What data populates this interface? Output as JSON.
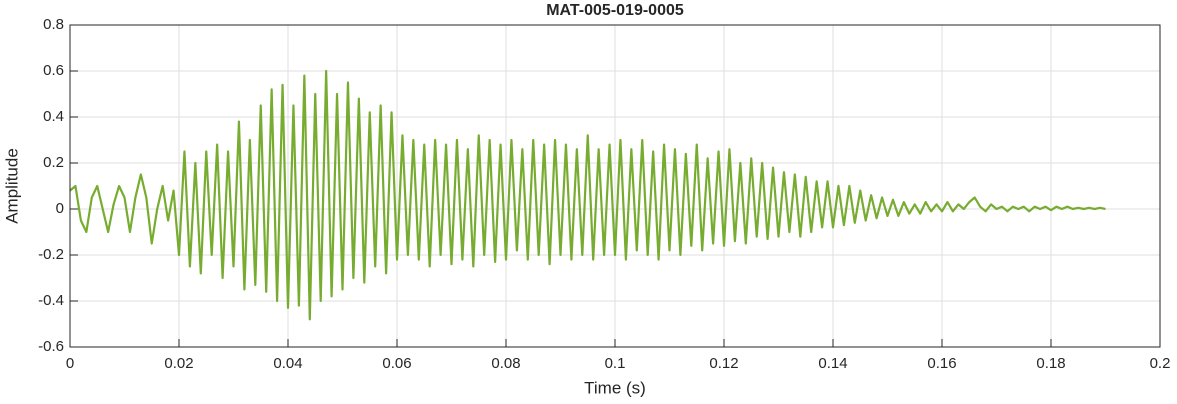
{
  "chart_data": {
    "type": "line",
    "title": "MAT-005-019-0005",
    "x_label": "Time (s)",
    "y_label": "Amplitude",
    "xlim": [
      0,
      0.2
    ],
    "xticks": [
      0,
      0.02,
      0.04,
      0.06,
      0.08,
      0.1,
      0.12,
      0.14,
      0.16,
      0.18,
      0.2
    ],
    "ylim": [
      -0.6,
      0.8
    ],
    "yticks": [
      -0.6,
      -0.4,
      -0.2,
      0,
      0.2,
      0.4,
      0.6,
      0.8
    ],
    "grid": true,
    "series": [
      {
        "color": "#77ac30",
        "x": [
          0,
          0.001,
          0.002,
          0.003,
          0.004,
          0.005,
          0.006,
          0.007,
          0.008,
          0.009,
          0.01,
          0.011,
          0.012,
          0.013,
          0.014,
          0.015,
          0.016,
          0.017,
          0.018,
          0.019,
          0.02,
          0.021,
          0.022,
          0.023,
          0.024,
          0.025,
          0.026,
          0.027,
          0.028,
          0.029,
          0.03,
          0.031,
          0.032,
          0.033,
          0.034,
          0.035,
          0.036,
          0.037,
          0.038,
          0.039,
          0.04,
          0.041,
          0.042,
          0.043,
          0.044,
          0.045,
          0.046,
          0.047,
          0.048,
          0.049,
          0.05,
          0.051,
          0.052,
          0.053,
          0.054,
          0.055,
          0.056,
          0.057,
          0.058,
          0.059,
          0.06,
          0.061,
          0.062,
          0.063,
          0.064,
          0.065,
          0.066,
          0.067,
          0.068,
          0.069,
          0.07,
          0.071,
          0.072,
          0.073,
          0.074,
          0.075,
          0.076,
          0.077,
          0.078,
          0.079,
          0.08,
          0.081,
          0.082,
          0.083,
          0.084,
          0.085,
          0.086,
          0.087,
          0.088,
          0.089,
          0.09,
          0.091,
          0.092,
          0.093,
          0.094,
          0.095,
          0.096,
          0.097,
          0.098,
          0.099,
          0.1,
          0.101,
          0.102,
          0.103,
          0.104,
          0.105,
          0.106,
          0.107,
          0.108,
          0.109,
          0.11,
          0.111,
          0.112,
          0.113,
          0.114,
          0.115,
          0.116,
          0.117,
          0.118,
          0.119,
          0.12,
          0.121,
          0.122,
          0.123,
          0.124,
          0.125,
          0.126,
          0.127,
          0.128,
          0.129,
          0.13,
          0.131,
          0.132,
          0.133,
          0.134,
          0.135,
          0.136,
          0.137,
          0.138,
          0.139,
          0.14,
          0.141,
          0.142,
          0.143,
          0.144,
          0.145,
          0.146,
          0.147,
          0.148,
          0.149,
          0.15,
          0.151,
          0.152,
          0.153,
          0.154,
          0.155,
          0.156,
          0.157,
          0.158,
          0.159,
          0.16,
          0.161,
          0.162,
          0.163,
          0.164,
          0.165,
          0.166,
          0.167,
          0.168,
          0.169,
          0.17,
          0.171,
          0.172,
          0.173,
          0.174,
          0.175,
          0.176,
          0.177,
          0.178,
          0.179,
          0.18,
          0.181,
          0.182,
          0.183,
          0.184,
          0.185,
          0.186,
          0.187,
          0.188,
          0.189,
          0.19
        ],
        "values": [
          0.08,
          0.1,
          -0.05,
          -0.1,
          0.05,
          0.1,
          0,
          -0.1,
          0.02,
          0.1,
          0.05,
          -0.1,
          0.05,
          0.15,
          0.05,
          -0.15,
          0,
          0.1,
          -0.05,
          0.08,
          -0.2,
          0.25,
          -0.25,
          0.2,
          -0.28,
          0.25,
          -0.2,
          0.28,
          -0.3,
          0.25,
          -0.25,
          0.38,
          -0.35,
          0.3,
          -0.33,
          0.45,
          -0.36,
          0.52,
          -0.4,
          0.54,
          -0.43,
          0.45,
          -0.42,
          0.58,
          -0.48,
          0.5,
          -0.4,
          0.6,
          -0.38,
          0.5,
          -0.35,
          0.55,
          -0.3,
          0.48,
          -0.32,
          0.42,
          -0.25,
          0.45,
          -0.28,
          0.42,
          -0.22,
          0.32,
          -0.2,
          0.3,
          -0.22,
          0.28,
          -0.25,
          0.3,
          -0.2,
          0.28,
          -0.24,
          0.3,
          -0.22,
          0.26,
          -0.25,
          0.32,
          -0.2,
          0.3,
          -0.23,
          0.28,
          -0.22,
          0.3,
          -0.18,
          0.26,
          -0.22,
          0.3,
          -0.2,
          0.28,
          -0.24,
          0.3,
          -0.2,
          0.28,
          -0.22,
          0.26,
          -0.2,
          0.32,
          -0.22,
          0.26,
          -0.2,
          0.28,
          -0.2,
          0.3,
          -0.22,
          0.26,
          -0.18,
          0.3,
          -0.2,
          0.25,
          -0.22,
          0.28,
          -0.18,
          0.26,
          -0.2,
          0.24,
          -0.16,
          0.28,
          -0.18,
          0.22,
          -0.15,
          0.25,
          -0.16,
          0.26,
          -0.14,
          0.2,
          -0.15,
          0.22,
          -0.12,
          0.2,
          -0.13,
          0.18,
          -0.12,
          0.16,
          -0.1,
          0.15,
          -0.12,
          0.14,
          -0.1,
          0.12,
          -0.08,
          0.12,
          -0.08,
          0.1,
          -0.07,
          0.1,
          -0.06,
          0.08,
          -0.05,
          0.06,
          -0.04,
          0.05,
          -0.03,
          0.04,
          -0.03,
          0.03,
          -0.02,
          0.02,
          -0.02,
          0.03,
          -0.01,
          0.02,
          -0.01,
          0.03,
          -0.01,
          0.02,
          0,
          0.03,
          0.05,
          0.01,
          -0.01,
          0.02,
          0,
          0.01,
          -0.01,
          0.01,
          0,
          0.01,
          -0.01,
          0.01,
          0,
          0.01,
          -0.005,
          0.01,
          0,
          0.01,
          0,
          0.005,
          0,
          0.005,
          0,
          0.005,
          0
        ]
      }
    ]
  }
}
